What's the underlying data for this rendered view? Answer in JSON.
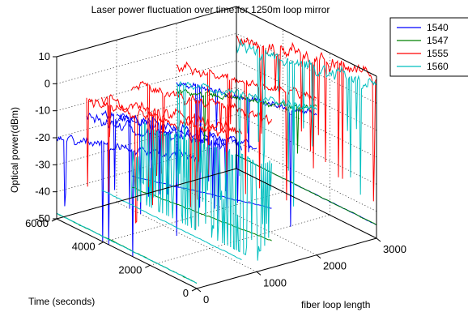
{
  "chart_data": {
    "type": "line",
    "projection": "3d",
    "title": "Laser power fluctuation over time:for 1250m loop mirror",
    "xlabel": "fiber loop length",
    "ylabel": "Time (seconds)",
    "zlabel": "Optical power(dBm)",
    "xlim": [
      0,
      3000
    ],
    "ylim": [
      0,
      6000
    ],
    "zlim": [
      -50,
      10
    ],
    "x_ticks": [
      "0",
      "1000",
      "2000",
      "3000"
    ],
    "y_ticks": [
      "0",
      "2000",
      "4000",
      "6000"
    ],
    "z_ticks": [
      "10",
      "0",
      "-10",
      "-20",
      "-30",
      "-40",
      "-50"
    ],
    "grid": true,
    "legend_position": "top-right",
    "colors": {
      "1540": "#0000ff",
      "1547": "#008000",
      "1555": "#ff0000",
      "1560": "#00bfbf"
    },
    "series": [
      {
        "name": "1540",
        "color": "#0000ff",
        "lines": [
          {
            "x": 0,
            "y_range": [
              0,
              6000
            ],
            "z_start": -2,
            "z_end": -20,
            "noise": 2.5,
            "dips": 0.03
          },
          {
            "x": 500,
            "y_range": [
              0,
              6000
            ],
            "z_start": 0,
            "z_end": -16,
            "noise": 3,
            "dips": 0.04
          },
          {
            "x": 750,
            "y_range": [
              0,
              6000
            ],
            "z_start": -2,
            "z_end": -16,
            "noise": 3,
            "dips": 0.04
          },
          {
            "x": 1000,
            "y_range": [
              0,
              6000
            ],
            "z_start": -3,
            "z_end": -18,
            "noise": 2.5,
            "dips": 0.04
          },
          {
            "x": 1250,
            "y_range": [
              0,
              6000
            ],
            "z_start": -28,
            "z_end": -42,
            "noise": 0.3,
            "dips": 0
          },
          {
            "x": 2000,
            "y_range": [
              0,
              6000
            ],
            "z_start": 2,
            "z_end": -12,
            "noise": 2,
            "dips": 0.03
          },
          {
            "x": 3000,
            "y_range": [
              0,
              6000
            ],
            "z_start": -45,
            "z_end": -45,
            "noise": 0.2,
            "dips": 0
          }
        ]
      },
      {
        "name": "1547",
        "color": "#008000",
        "lines": [
          {
            "x": 0,
            "y_range": [
              0,
              6000
            ],
            "z_start": -48,
            "z_end": -48,
            "noise": 0.2,
            "dips": 0
          },
          {
            "x": 1250,
            "y_range": [
              0,
              6000
            ],
            "z_start": -40,
            "z_end": -46,
            "noise": 0.3,
            "dips": 0
          },
          {
            "x": 2000,
            "y_range": [
              0,
              6000
            ],
            "z_start": 4,
            "z_end": -15,
            "noise": 2,
            "dips": 0.02
          },
          {
            "x": 3000,
            "y_range": [
              0,
              6000
            ],
            "z_start": -45,
            "z_end": -45,
            "noise": 0.2,
            "dips": 0
          }
        ]
      },
      {
        "name": "1555",
        "color": "#ff0000",
        "lines": [
          {
            "x": 500,
            "y_range": [
              0,
              6000
            ],
            "z_start": 4,
            "z_end": -10,
            "noise": 3,
            "dips": 0.05
          },
          {
            "x": 750,
            "y_range": [
              0,
              6000
            ],
            "z_start": 4,
            "z_end": -10,
            "noise": 3,
            "dips": 0.05
          },
          {
            "x": 1250,
            "y_range": [
              0,
              6000
            ],
            "z_start": 5,
            "z_end": -8,
            "noise": 3,
            "dips": 0.06
          },
          {
            "x": 2000,
            "y_range": [
              0,
              6000
            ],
            "z_start": 8,
            "z_end": -6,
            "noise": 2.5,
            "dips": 0.04
          },
          {
            "x": 3000,
            "y_range": [
              0,
              6000
            ],
            "z_start": 10,
            "z_end": -2,
            "noise": 4,
            "dips": 0.08
          }
        ]
      },
      {
        "name": "1560",
        "color": "#00bfbf",
        "lines": [
          {
            "x": 0,
            "y_range": [
              0,
              6000
            ],
            "z_start": -48,
            "z_end": -48,
            "noise": 0.2,
            "dips": 0
          },
          {
            "x": 750,
            "y_range": [
              0,
              6000
            ],
            "z_start": -44,
            "z_end": -44,
            "noise": 0.2,
            "dips": 0
          },
          {
            "x": 1250,
            "y_range": [
              0,
              6000
            ],
            "z_start": -12,
            "z_end": -22,
            "noise": 2,
            "dips": 0.6
          },
          {
            "x": 2000,
            "y_range": [
              0,
              6000
            ],
            "z_start": 4,
            "z_end": -12,
            "noise": 2,
            "dips": 0.04
          },
          {
            "x": 3000,
            "y_range": [
              0,
              6000
            ],
            "z_start": 6,
            "z_end": -4,
            "noise": 4,
            "dips": 0.1
          }
        ]
      }
    ]
  }
}
